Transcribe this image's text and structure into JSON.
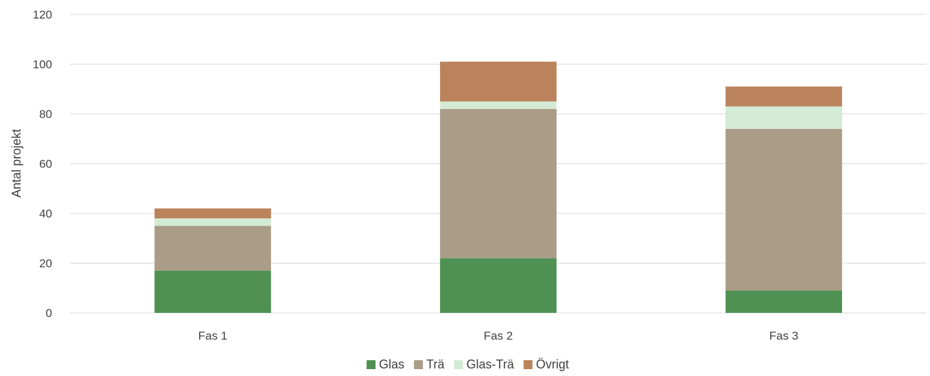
{
  "chart_data": {
    "type": "bar",
    "stacked": true,
    "categories": [
      "Fas 1",
      "Fas 2",
      "Fas 3"
    ],
    "series": [
      {
        "name": "Glas",
        "values": [
          17,
          22,
          9
        ],
        "color": "#4e9153"
      },
      {
        "name": "Trä",
        "values": [
          18,
          60,
          65
        ],
        "color": "#ab9c88"
      },
      {
        "name": "Glas-Trä",
        "values": [
          3,
          3,
          9
        ],
        "color": "#d3ead5"
      },
      {
        "name": "Övrigt",
        "values": [
          4,
          16,
          8
        ],
        "color": "#bb835c"
      }
    ],
    "ylabel": "Antal projekt",
    "ylim": [
      0,
      120
    ],
    "yticks": [
      "0",
      "20",
      "40",
      "60",
      "80",
      "100",
      "120"
    ],
    "grid": true,
    "legend_position": "bottom"
  }
}
